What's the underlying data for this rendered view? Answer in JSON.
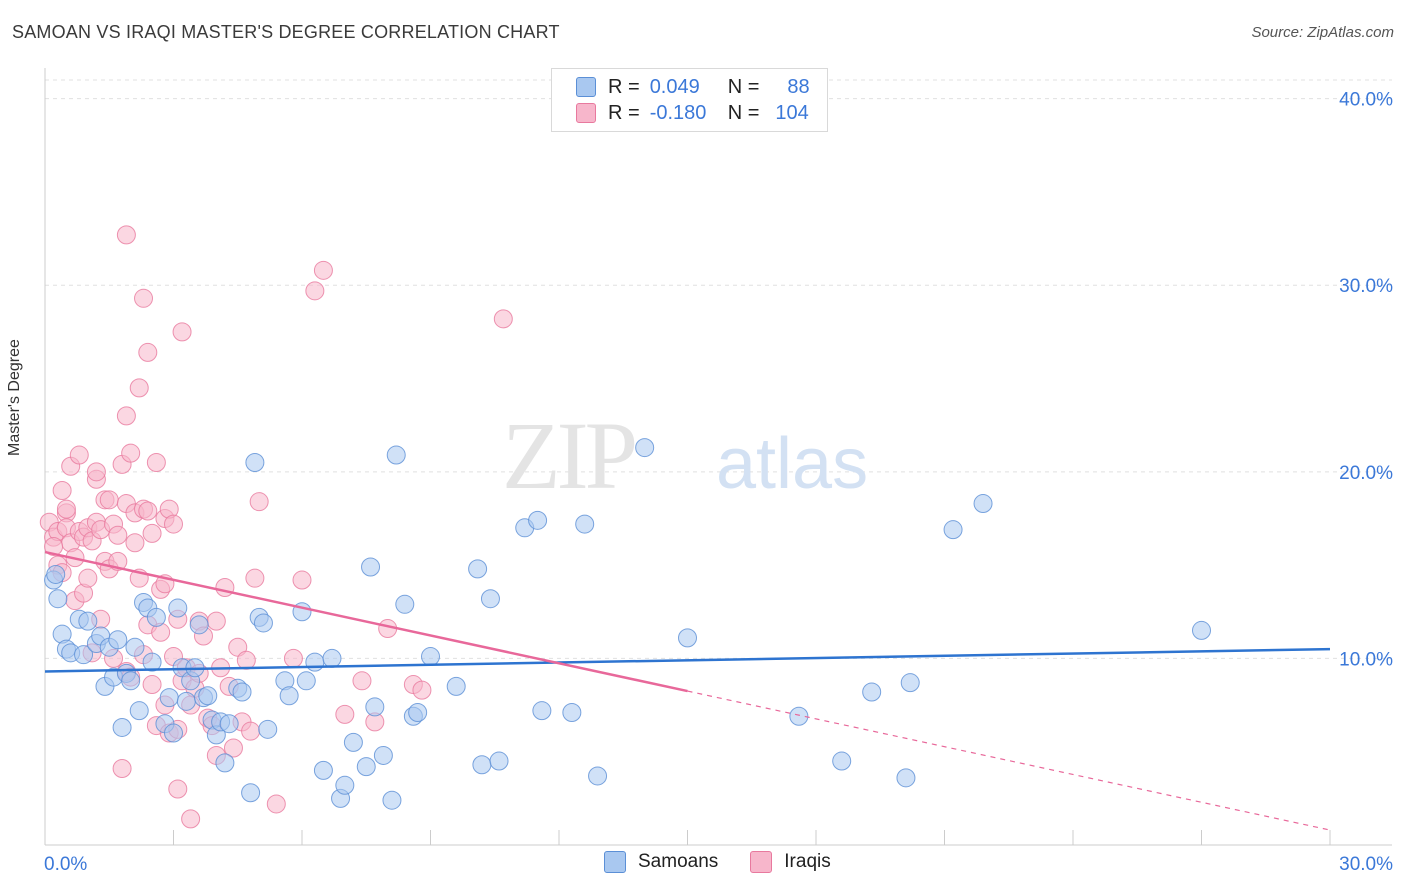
{
  "title": "SAMOAN VS IRAQI MASTER'S DEGREE CORRELATION CHART",
  "source": "Source: ZipAtlas.com",
  "watermark": {
    "zip": "ZIP",
    "atlas": "atlas"
  },
  "colors": {
    "samoans_fill": "#a9c8f0",
    "samoans_stroke": "#5b8fd6",
    "samoans_line": "#2e74d0",
    "iraqis_fill": "#f7b6cb",
    "iraqis_stroke": "#e8799e",
    "iraqis_line": "#e8689a",
    "axis_text": "#3b78d8",
    "grid": "#e0e0e0"
  },
  "legend": {
    "samoans": {
      "r_label": "R =",
      "r_value": "0.049",
      "n_label": "N =",
      "n_value": "88"
    },
    "iraqis": {
      "r_label": "R =",
      "r_value": "-0.180",
      "n_label": "N =",
      "n_value": "104"
    }
  },
  "bottom_legend": {
    "samoans": "Samoans",
    "iraqis": "Iraqis"
  },
  "chart_data": {
    "type": "scatter",
    "title": "SAMOAN VS IRAQI MASTER'S DEGREE CORRELATION CHART",
    "xlabel": "",
    "ylabel": "Master's Degree",
    "xlim": [
      0,
      30
    ],
    "ylim": [
      0,
      41
    ],
    "x_tick_labels": {
      "min": "0.0%",
      "max": "30.0%"
    },
    "y_ticks": [
      {
        "value": 10,
        "label": "10.0%"
      },
      {
        "value": 20,
        "label": "20.0%"
      },
      {
        "value": 30,
        "label": "30.0%"
      },
      {
        "value": 40,
        "label": "40.0%"
      }
    ],
    "series": [
      {
        "name": "Samoans",
        "trend": {
          "x0": 0,
          "y0": 9.3,
          "x1": 30,
          "y1": 10.5,
          "dash_from": null
        },
        "points": [
          [
            0.2,
            14.2
          ],
          [
            0.3,
            13.2
          ],
          [
            0.4,
            11.3
          ],
          [
            0.5,
            10.5
          ],
          [
            0.6,
            10.3
          ],
          [
            0.8,
            12.1
          ],
          [
            0.9,
            10.2
          ],
          [
            1.0,
            12.0
          ],
          [
            1.2,
            10.8
          ],
          [
            1.3,
            11.2
          ],
          [
            1.4,
            8.5
          ],
          [
            1.5,
            10.6
          ],
          [
            1.6,
            9.0
          ],
          [
            1.7,
            11.0
          ],
          [
            1.8,
            6.3
          ],
          [
            1.9,
            9.2
          ],
          [
            2.0,
            8.8
          ],
          [
            2.1,
            10.6
          ],
          [
            2.2,
            7.2
          ],
          [
            2.3,
            13.0
          ],
          [
            2.4,
            12.7
          ],
          [
            2.5,
            9.8
          ],
          [
            2.6,
            12.2
          ],
          [
            2.8,
            6.5
          ],
          [
            2.9,
            7.9
          ],
          [
            3.0,
            6.0
          ],
          [
            3.1,
            12.7
          ],
          [
            3.2,
            9.5
          ],
          [
            3.3,
            7.7
          ],
          [
            3.4,
            8.8
          ],
          [
            3.5,
            9.5
          ],
          [
            3.6,
            11.8
          ],
          [
            3.7,
            7.9
          ],
          [
            3.8,
            8.0
          ],
          [
            3.9,
            6.7
          ],
          [
            4.0,
            5.9
          ],
          [
            4.1,
            6.6
          ],
          [
            4.2,
            4.4
          ],
          [
            4.3,
            6.5
          ],
          [
            4.5,
            8.4
          ],
          [
            4.6,
            8.2
          ],
          [
            4.8,
            2.8
          ],
          [
            4.9,
            20.5
          ],
          [
            5.0,
            12.2
          ],
          [
            5.1,
            11.9
          ],
          [
            5.2,
            6.2
          ],
          [
            5.6,
            8.8
          ],
          [
            5.7,
            8.0
          ],
          [
            6.0,
            12.5
          ],
          [
            6.1,
            8.8
          ],
          [
            6.3,
            9.8
          ],
          [
            6.5,
            4.0
          ],
          [
            6.7,
            10.0
          ],
          [
            6.9,
            2.5
          ],
          [
            7.0,
            3.2
          ],
          [
            7.2,
            5.5
          ],
          [
            7.5,
            4.2
          ],
          [
            7.6,
            14.9
          ],
          [
            7.7,
            7.4
          ],
          [
            7.9,
            4.8
          ],
          [
            8.1,
            2.4
          ],
          [
            8.2,
            20.9
          ],
          [
            8.4,
            12.9
          ],
          [
            8.6,
            6.9
          ],
          [
            8.7,
            7.1
          ],
          [
            9.0,
            10.1
          ],
          [
            9.6,
            8.5
          ],
          [
            10.1,
            14.8
          ],
          [
            10.2,
            4.3
          ],
          [
            10.4,
            13.2
          ],
          [
            10.6,
            4.5
          ],
          [
            11.2,
            17.0
          ],
          [
            11.5,
            17.4
          ],
          [
            11.6,
            7.2
          ],
          [
            12.3,
            7.1
          ],
          [
            12.6,
            17.2
          ],
          [
            12.9,
            3.7
          ],
          [
            14.0,
            21.3
          ],
          [
            15.0,
            11.1
          ],
          [
            17.6,
            6.9
          ],
          [
            18.6,
            4.5
          ],
          [
            19.3,
            8.2
          ],
          [
            20.1,
            3.6
          ],
          [
            20.2,
            8.7
          ],
          [
            21.2,
            16.9
          ],
          [
            21.9,
            18.3
          ],
          [
            27.0,
            11.5
          ],
          [
            0.25,
            14.5
          ]
        ]
      },
      {
        "name": "Iraqis",
        "trend": {
          "x0": 0,
          "y0": 15.7,
          "x1": 30,
          "y1": 0.8,
          "dash_from": 15.0
        },
        "points": [
          [
            0.1,
            17.3
          ],
          [
            0.2,
            16.5
          ],
          [
            0.3,
            16.8
          ],
          [
            0.3,
            15.0
          ],
          [
            0.4,
            14.6
          ],
          [
            0.4,
            19.0
          ],
          [
            0.5,
            17.8
          ],
          [
            0.5,
            17.0
          ],
          [
            0.6,
            16.2
          ],
          [
            0.6,
            20.3
          ],
          [
            0.7,
            15.4
          ],
          [
            0.7,
            13.1
          ],
          [
            0.8,
            16.8
          ],
          [
            0.8,
            20.9
          ],
          [
            0.9,
            16.5
          ],
          [
            0.9,
            13.5
          ],
          [
            1.0,
            17.0
          ],
          [
            1.0,
            14.3
          ],
          [
            1.1,
            16.3
          ],
          [
            1.1,
            10.3
          ],
          [
            1.2,
            19.6
          ],
          [
            1.2,
            17.3
          ],
          [
            1.3,
            16.9
          ],
          [
            1.3,
            12.1
          ],
          [
            1.4,
            18.5
          ],
          [
            1.4,
            15.2
          ],
          [
            1.5,
            18.5
          ],
          [
            1.5,
            14.8
          ],
          [
            1.6,
            17.2
          ],
          [
            1.6,
            10.0
          ],
          [
            1.7,
            16.6
          ],
          [
            1.7,
            15.2
          ],
          [
            1.8,
            20.4
          ],
          [
            1.8,
            4.1
          ],
          [
            1.9,
            18.3
          ],
          [
            1.9,
            9.3
          ],
          [
            2.0,
            21.0
          ],
          [
            2.0,
            9.0
          ],
          [
            2.1,
            17.8
          ],
          [
            2.1,
            16.2
          ],
          [
            2.2,
            24.5
          ],
          [
            2.2,
            14.3
          ],
          [
            2.3,
            18.0
          ],
          [
            2.3,
            10.2
          ],
          [
            2.4,
            17.9
          ],
          [
            2.4,
            11.8
          ],
          [
            2.5,
            16.7
          ],
          [
            2.5,
            8.6
          ],
          [
            2.6,
            20.5
          ],
          [
            2.6,
            6.4
          ],
          [
            2.7,
            13.7
          ],
          [
            2.7,
            11.4
          ],
          [
            2.8,
            17.5
          ],
          [
            2.8,
            7.5
          ],
          [
            2.9,
            18.0
          ],
          [
            2.9,
            6.0
          ],
          [
            3.0,
            17.2
          ],
          [
            3.0,
            10.1
          ],
          [
            3.1,
            12.1
          ],
          [
            3.1,
            6.2
          ],
          [
            3.2,
            8.8
          ],
          [
            3.3,
            9.5
          ],
          [
            3.4,
            7.5
          ],
          [
            3.5,
            8.4
          ],
          [
            3.6,
            12.0
          ],
          [
            3.7,
            11.2
          ],
          [
            3.8,
            6.8
          ],
          [
            3.9,
            6.4
          ],
          [
            4.0,
            12.0
          ],
          [
            4.1,
            9.5
          ],
          [
            4.2,
            13.8
          ],
          [
            4.3,
            8.5
          ],
          [
            4.4,
            5.2
          ],
          [
            4.5,
            10.6
          ],
          [
            4.6,
            6.6
          ],
          [
            4.7,
            9.9
          ],
          [
            4.8,
            6.1
          ],
          [
            4.9,
            14.3
          ],
          [
            5.0,
            18.4
          ],
          [
            5.4,
            2.2
          ],
          [
            5.8,
            10.0
          ],
          [
            6.0,
            14.2
          ],
          [
            6.3,
            29.7
          ],
          [
            6.5,
            30.8
          ],
          [
            7.0,
            7.0
          ],
          [
            7.4,
            8.8
          ],
          [
            7.7,
            6.6
          ],
          [
            8.0,
            11.6
          ],
          [
            8.6,
            8.6
          ],
          [
            8.8,
            8.3
          ],
          [
            10.7,
            28.2
          ],
          [
            1.9,
            32.7
          ],
          [
            2.3,
            29.3
          ],
          [
            2.4,
            26.4
          ],
          [
            3.2,
            27.5
          ],
          [
            1.9,
            23.0
          ],
          [
            3.4,
            1.4
          ],
          [
            3.1,
            3.0
          ],
          [
            4.0,
            4.8
          ],
          [
            0.5,
            18.0
          ],
          [
            1.2,
            20.0
          ],
          [
            2.8,
            14.0
          ],
          [
            0.2,
            16.0
          ],
          [
            3.6,
            9.2
          ]
        ]
      }
    ]
  }
}
